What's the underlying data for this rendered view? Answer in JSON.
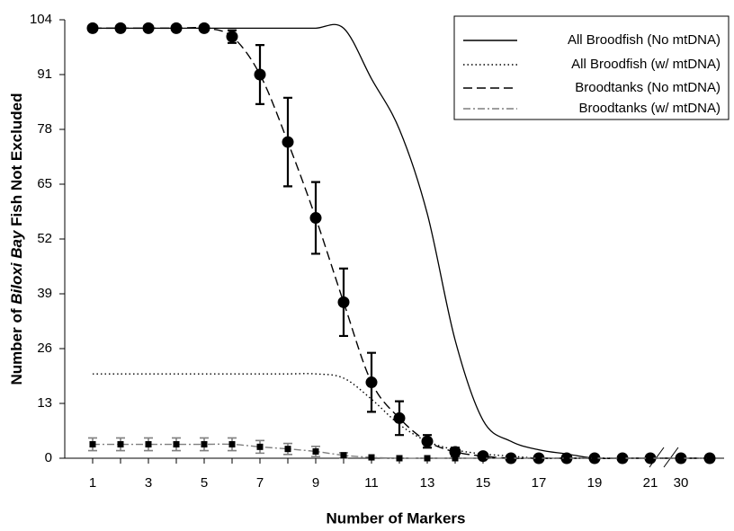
{
  "chart_data": {
    "type": "line",
    "xlabel": "Number of Markers",
    "ylabel": [
      "Number of ",
      "Biloxi Bay",
      " Fish Not Excluded"
    ],
    "categories": [
      "1",
      null,
      "3",
      null,
      "5",
      null,
      "7",
      null,
      "9",
      null,
      "11",
      null,
      "13",
      null,
      "15",
      null,
      "17",
      null,
      "19",
      null,
      "21",
      "30",
      null
    ],
    "ylim": [
      0,
      104
    ],
    "yticks": [
      0,
      13,
      26,
      39,
      52,
      65,
      78,
      91,
      104
    ],
    "legend": "upper right",
    "series": [
      {
        "name": "All Broodfish (No mtDNA)",
        "color": "#000000",
        "style": "solid",
        "values": [
          102,
          102,
          102,
          102,
          102,
          102,
          102,
          102,
          102,
          102,
          90,
          78,
          58,
          28,
          9,
          4,
          2,
          1,
          0,
          0,
          0,
          0,
          0
        ]
      },
      {
        "name": "All Broodfish (w/ mtDNA)",
        "color": "#000000",
        "style": "dotted",
        "values": [
          20,
          20,
          20,
          20,
          20,
          20,
          20,
          20,
          20,
          19,
          14,
          8,
          4,
          2,
          1,
          0.5,
          0,
          0,
          0,
          0,
          0,
          0,
          0
        ]
      },
      {
        "name": "Broodtanks (No mtDNA)",
        "color": "#000000",
        "style": "dashed",
        "marker": "circle",
        "values": [
          102,
          102,
          102,
          102,
          102,
          100,
          91,
          75,
          57,
          37,
          18,
          9.5,
          4,
          1.5,
          0.5,
          0,
          0,
          0,
          0,
          0,
          0,
          0,
          0
        ],
        "errors": [
          0,
          0,
          0,
          0,
          0,
          1.5,
          7,
          10.5,
          8.5,
          8,
          7,
          4,
          1.5,
          1,
          0,
          0,
          0,
          0,
          0,
          0,
          0,
          0,
          0
        ]
      },
      {
        "name": "Broodtanks (w/ mtDNA)",
        "color": "#7f7f7f",
        "style": "dashdot",
        "marker": "square",
        "values": [
          3.3,
          3.3,
          3.3,
          3.3,
          3.3,
          3.3,
          2.7,
          2.2,
          1.6,
          0.7,
          0.2,
          0,
          0,
          0,
          0,
          0,
          0,
          0,
          0,
          0,
          0,
          0,
          0
        ],
        "errors": [
          1.5,
          1.5,
          1.5,
          1.5,
          1.5,
          1.5,
          1.5,
          1.3,
          1.2,
          0.6,
          0,
          0,
          0,
          0,
          0,
          0,
          0,
          0,
          0,
          0,
          0,
          0,
          0
        ]
      }
    ]
  }
}
